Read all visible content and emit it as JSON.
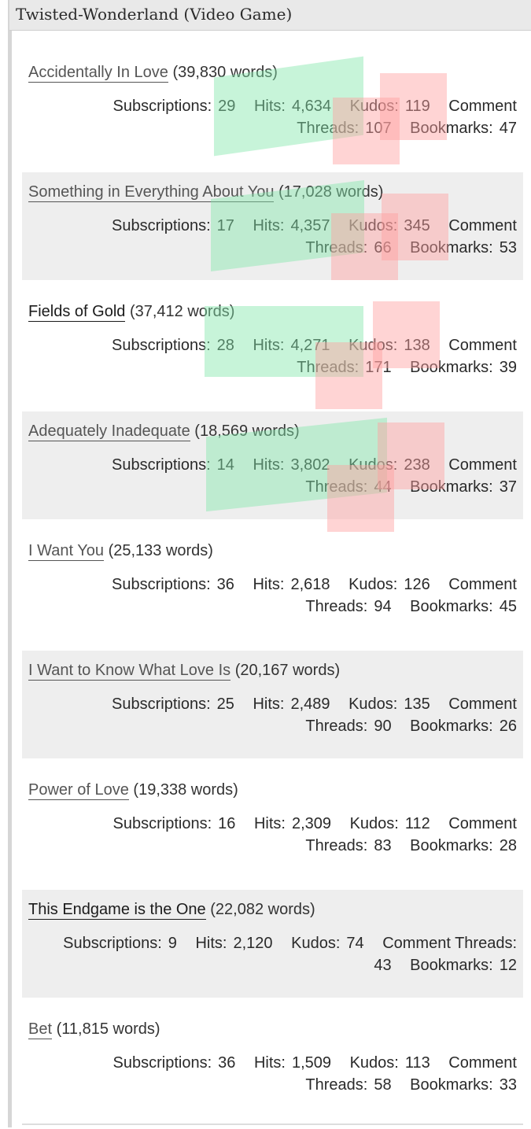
{
  "header": {
    "title": "Twisted-Wonderland (Video Game)"
  },
  "labels": {
    "subscriptions": "Subscriptions:",
    "hits": "Hits:",
    "kudos": "Kudos:",
    "comment": "Comment",
    "threads": "Threads:",
    "comment_threads": "Comment Threads:",
    "bookmarks": "Bookmarks:"
  },
  "works": [
    {
      "title": "Accidentally In Love",
      "words": "(39,830 words)",
      "subscriptions": "29",
      "hits": "4,634",
      "kudos": "119",
      "threads": "107",
      "bookmarks": "47"
    },
    {
      "title": "Something in Everything About You",
      "words": "(17,028 words)",
      "subscriptions": "17",
      "hits": "4,357",
      "kudos": "345",
      "threads": "66",
      "bookmarks": "53"
    },
    {
      "title": "Fields of Gold",
      "words": "(37,412 words)",
      "subscriptions": "28",
      "hits": "4,271",
      "kudos": "138",
      "threads": "171",
      "bookmarks": "39"
    },
    {
      "title": "Adequately Inadequate",
      "words": "(18,569 words)",
      "subscriptions": "14",
      "hits": "3,802",
      "kudos": "238",
      "threads": "44",
      "bookmarks": "37"
    },
    {
      "title": "I Want You",
      "words": "(25,133 words)",
      "subscriptions": "36",
      "hits": "2,618",
      "kudos": "126",
      "threads": "94",
      "bookmarks": "45"
    },
    {
      "title": "I Want to Know What Love Is",
      "words": "(20,167 words)",
      "subscriptions": "25",
      "hits": "2,489",
      "kudos": "135",
      "threads": "90",
      "bookmarks": "26"
    },
    {
      "title": "Power of Love",
      "words": "(19,338 words)",
      "subscriptions": "16",
      "hits": "2,309",
      "kudos": "112",
      "threads": "83",
      "bookmarks": "28"
    },
    {
      "title": "This Endgame is the One",
      "words": "(22,082 words)",
      "subscriptions": "9",
      "hits": "2,120",
      "kudos": "74",
      "threads": "43",
      "bookmarks": "12"
    },
    {
      "title": "Bet",
      "words": "(11,815 words)",
      "subscriptions": "36",
      "hits": "1,509",
      "kudos": "113",
      "threads": "58",
      "bookmarks": "33"
    }
  ]
}
